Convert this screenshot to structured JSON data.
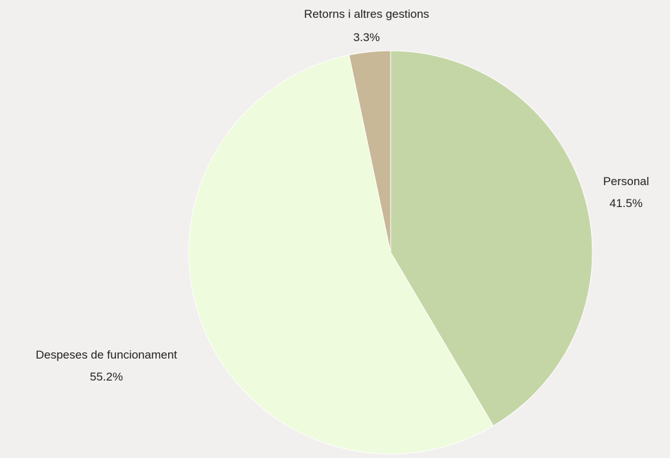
{
  "chart_data": {
    "type": "pie",
    "title": "",
    "start_angle_deg": 0,
    "direction": "clockwise",
    "slices": [
      {
        "label": "Personal",
        "value": 41.5,
        "value_label": "41.5%",
        "color": "#c5d6a6"
      },
      {
        "label": "Despeses de funcionament",
        "value": 55.2,
        "value_label": "55.2%",
        "color": "#eefbdc"
      },
      {
        "label": "Retorns i altres gestions",
        "value": 3.3,
        "value_label": "3.3%",
        "color": "#c8b897"
      }
    ]
  }
}
